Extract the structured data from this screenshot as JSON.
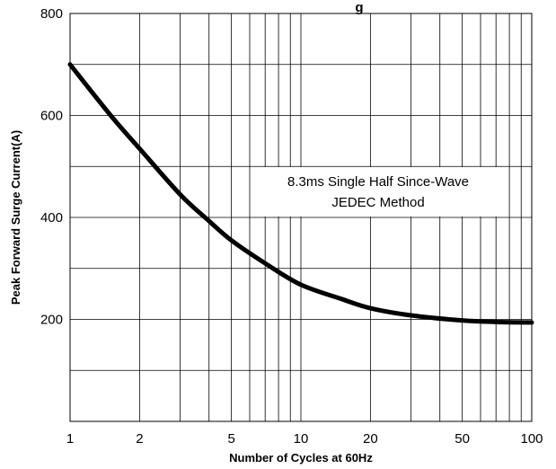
{
  "chart_data": {
    "type": "line",
    "title": "g  ",
    "xlabel": "Number of Cycles at 60Hz",
    "ylabel": "Peak Forward Surge Current(A)",
    "x_scale": "log",
    "xlim": [
      1,
      100
    ],
    "ylim": [
      0,
      800
    ],
    "x_ticks": [
      1,
      2,
      5,
      10,
      20,
      50,
      100
    ],
    "x_tick_labels": [
      "1",
      "2",
      "5",
      "10",
      "20",
      "50",
      "100"
    ],
    "y_ticks": [
      200,
      400,
      600,
      800
    ],
    "y_tick_labels": [
      "200",
      "400",
      "600",
      "800"
    ],
    "grid": true,
    "annotation": [
      "8.3ms Single Half Since-Wave",
      "JEDEC Method"
    ],
    "series": [
      {
        "color": "#000000",
        "x": [
          1,
          1.5,
          2,
          3,
          4,
          5,
          7,
          10,
          15,
          20,
          30,
          50,
          70,
          100
        ],
        "y": [
          700,
          600,
          535,
          445,
          393,
          355,
          310,
          268,
          240,
          222,
          208,
          198,
          195,
          194
        ]
      }
    ]
  }
}
